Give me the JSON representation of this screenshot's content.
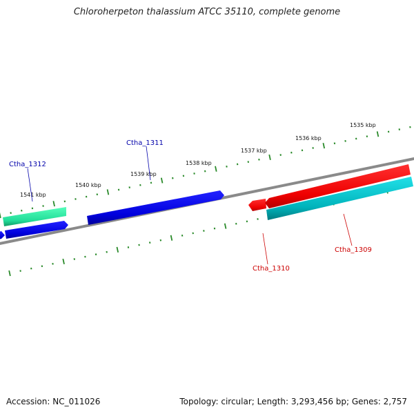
{
  "title": "Chloroherpeton thalassium ATCC 35110, complete genome",
  "footer": {
    "accession": "Accession: NC_011026",
    "summary": "Topology: circular; Length: 3,293,456 bp; Genes: 2,757"
  },
  "ruler_labels": [
    "1535 kbp",
    "1536 kbp",
    "1537 kbp",
    "1538 kbp",
    "1539 kbp",
    "1540 kbp",
    "1541 kbp"
  ],
  "genes": [
    {
      "id": "Ctha_1309",
      "strand": "minus",
      "color": "#dd0000"
    },
    {
      "id": "Ctha_1310",
      "strand": "minus",
      "color": "#dd0000"
    },
    {
      "id": "Ctha_1311",
      "strand": "plus",
      "color": "#0000cc"
    },
    {
      "id": "Ctha_1312",
      "strand": "plus",
      "color": "#0000cc"
    }
  ],
  "colors": {
    "backbone": "#808080",
    "tick": "#2a8a2a",
    "plus_gene": "#0000dd",
    "minus_gene": "#ee0000",
    "feature_green": "#22dd99",
    "feature_teal": "#00b3bb",
    "label_plus": "#0000aa",
    "label_minus": "#cc0000"
  }
}
